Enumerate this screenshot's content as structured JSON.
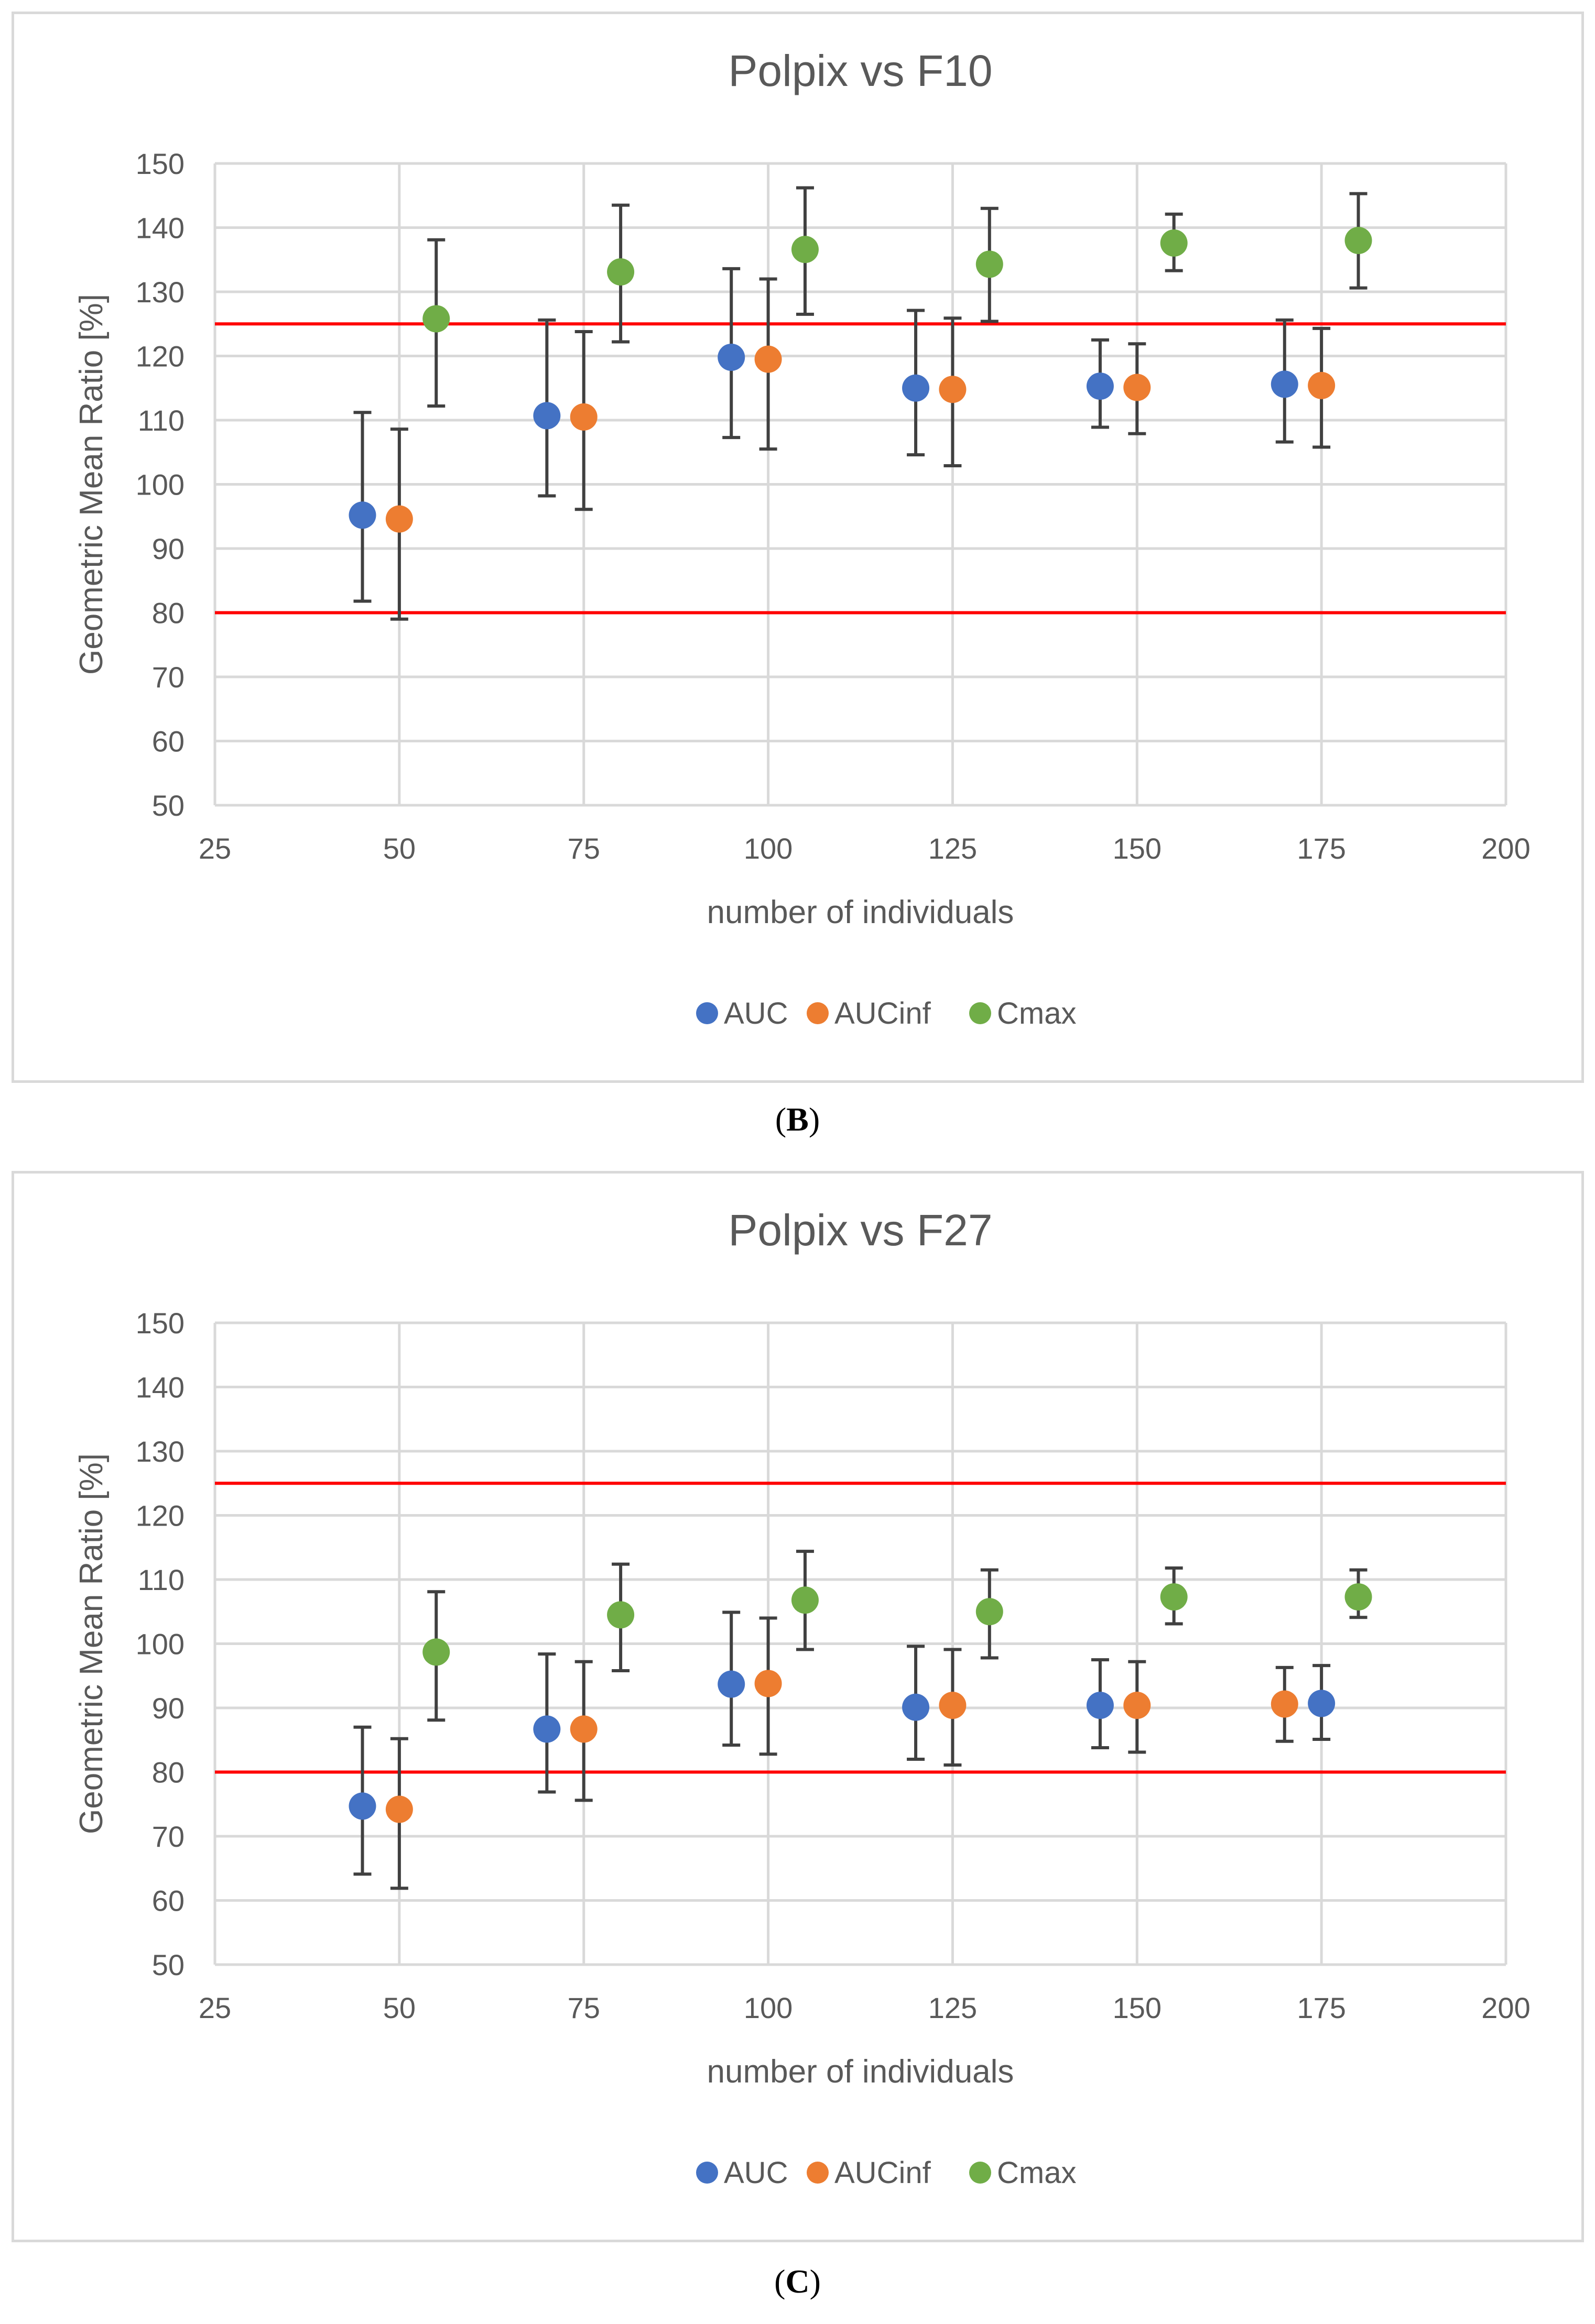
{
  "chart_data": [
    {
      "panel_label": "B",
      "type": "scatter",
      "title": "Polpix vs F10",
      "xlabel": "number of individuals",
      "ylabel": "Geometric Mean Ratio [%]",
      "xlim": [
        25,
        200
      ],
      "ylim": [
        50,
        150
      ],
      "x_ticks": [
        25,
        50,
        75,
        100,
        125,
        150,
        175,
        200
      ],
      "y_ticks": [
        50,
        60,
        70,
        80,
        90,
        100,
        110,
        120,
        130,
        140,
        150
      ],
      "grid": true,
      "legend_position": "bottom-center",
      "reference_lines": [
        {
          "y": 80,
          "color": "#ff0000"
        },
        {
          "y": 125,
          "color": "#ff0000"
        }
      ],
      "series": [
        {
          "name": "AUC",
          "color": "#4472c4",
          "x": [
            45,
            70,
            95,
            120,
            145,
            170
          ],
          "y": [
            95.2,
            110.7,
            119.8,
            115.0,
            115.3,
            115.6
          ],
          "lower": [
            81.8,
            98.2,
            107.3,
            104.6,
            108.9,
            106.6
          ],
          "upper": [
            111.2,
            125.6,
            133.6,
            127.1,
            122.5,
            125.6
          ]
        },
        {
          "name": "AUCinf",
          "color": "#ed7d31",
          "x": [
            50,
            75,
            100,
            125,
            150,
            175
          ],
          "y": [
            94.6,
            110.5,
            119.5,
            114.8,
            115.1,
            115.4
          ],
          "lower": [
            79.0,
            96.1,
            105.5,
            102.9,
            107.9,
            105.8
          ],
          "upper": [
            108.6,
            123.8,
            132.0,
            125.9,
            121.9,
            124.3
          ]
        },
        {
          "name": "Cmax",
          "color": "#70ad47",
          "x": [
            55,
            80,
            105,
            130,
            155,
            180
          ],
          "y": [
            125.8,
            133.1,
            136.6,
            134.3,
            137.6,
            138.0
          ],
          "lower": [
            112.2,
            122.2,
            126.5,
            125.4,
            133.3,
            130.6
          ],
          "upper": [
            138.1,
            143.5,
            146.2,
            143.0,
            142.1,
            145.3
          ]
        }
      ]
    },
    {
      "panel_label": "C",
      "type": "scatter",
      "title": "Polpix vs F27",
      "xlabel": "number of individuals",
      "ylabel": "Geometric Mean Ratio [%]",
      "xlim": [
        25,
        200
      ],
      "ylim": [
        50,
        150
      ],
      "x_ticks": [
        25,
        50,
        75,
        100,
        125,
        150,
        175,
        200
      ],
      "y_ticks": [
        50,
        60,
        70,
        80,
        90,
        100,
        110,
        120,
        130,
        140,
        150
      ],
      "grid": true,
      "legend_position": "bottom-center",
      "reference_lines": [
        {
          "y": 80,
          "color": "#ff0000"
        },
        {
          "y": 125,
          "color": "#ff0000"
        }
      ],
      "series": [
        {
          "name": "AUC",
          "color": "#4472c4",
          "x": [
            45,
            70,
            95,
            120,
            145,
            175
          ],
          "y": [
            74.7,
            86.7,
            93.7,
            90.1,
            90.4,
            90.7
          ],
          "lower": [
            64.1,
            76.9,
            84.2,
            82.0,
            83.8,
            85.1
          ],
          "upper": [
            87.0,
            98.4,
            104.9,
            99.6,
            97.5,
            96.6
          ]
        },
        {
          "name": "AUCinf",
          "color": "#ed7d31",
          "x": [
            50,
            75,
            100,
            125,
            150,
            170
          ],
          "y": [
            74.2,
            86.7,
            93.8,
            90.4,
            90.4,
            90.6
          ],
          "lower": [
            61.9,
            75.6,
            82.8,
            81.1,
            83.1,
            84.8
          ],
          "upper": [
            85.2,
            97.2,
            104.0,
            99.1,
            97.2,
            96.3
          ]
        },
        {
          "name": "Cmax",
          "color": "#70ad47",
          "x": [
            55,
            80,
            105,
            130,
            155,
            180
          ],
          "y": [
            98.7,
            104.5,
            106.8,
            105.0,
            107.3,
            107.3
          ],
          "lower": [
            88.1,
            95.8,
            99.1,
            97.8,
            103.1,
            104.1
          ],
          "upper": [
            108.1,
            112.4,
            114.4,
            111.5,
            111.8,
            111.5
          ]
        }
      ]
    }
  ]
}
